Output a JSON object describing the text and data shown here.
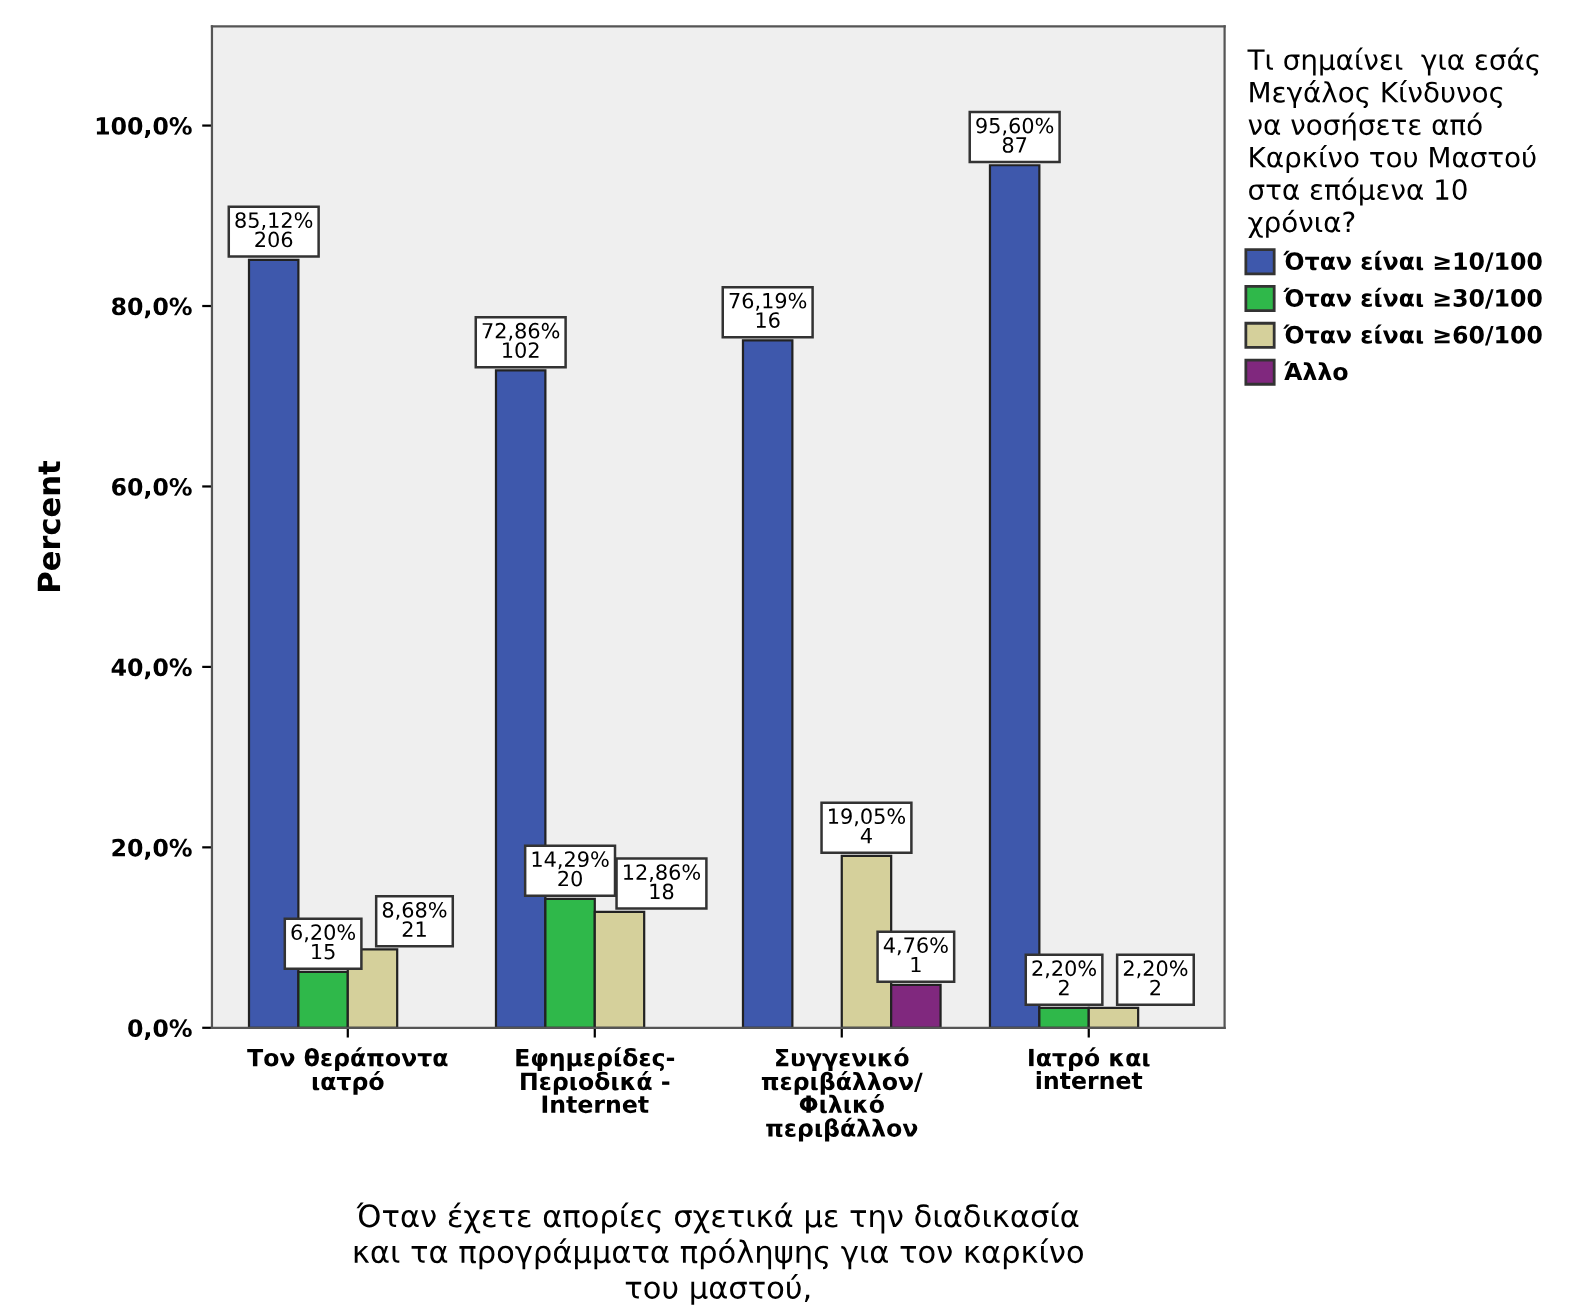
{
  "chart_data": {
    "type": "bar",
    "xlabel": "Όταν έχετε απορίες σχετικά με την διαδικασία\nκαι τα προγράμματα πρόληψης για τον καρκίνο\nτου μαστού,",
    "ylabel": "Percent",
    "legend_title": "Τι σημαίνει  για εσάς\nΜεγάλος Κίνδυνος\nνα νοσήσετε από\nΚαρκίνο του Μαστού\nστα επόμενα 10\nχρόνια?",
    "categories": [
      "Τον θεράποντα\nιατρό",
      "Εφημερίδες-\nΠεριοδικά -\nInternet",
      "Συγγενικό\nπεριβάλλον/\nΦιλικό\nπεριβάλλον",
      "Ιατρό και\ninternet"
    ],
    "series": [
      {
        "name": "Όταν είναι ≥10/100",
        "color": "#3e58ac",
        "values": [
          85.12,
          72.86,
          76.19,
          95.6
        ],
        "value_labels": [
          "85,12%\n206",
          "72,86%\n102",
          "76,19%\n16",
          "95,60%\n87"
        ]
      },
      {
        "name": "Όταν είναι ≥30/100",
        "color": "#2fb84a",
        "values": [
          6.2,
          14.29,
          null,
          2.2
        ],
        "value_labels": [
          "6,20%\n15",
          "14,29%\n20",
          null,
          "2,20%\n2"
        ]
      },
      {
        "name": "Όταν είναι ≥60/100",
        "color": "#d5d09b",
        "values": [
          8.68,
          12.86,
          19.05,
          2.2
        ],
        "value_labels": [
          "8,68%\n21",
          "12,86%\n18",
          "19,05%\n4",
          "2,20%\n2"
        ]
      },
      {
        "name": "Άλλο",
        "color": "#80287e",
        "values": [
          null,
          null,
          4.76,
          null
        ],
        "value_labels": [
          null,
          null,
          "4,76%\n1",
          null
        ]
      }
    ],
    "ylim": [
      0,
      111
    ],
    "yticks": [
      {
        "value": 0,
        "label": "0,0%"
      },
      {
        "value": 20,
        "label": "20,0%"
      },
      {
        "value": 40,
        "label": "40,0%"
      },
      {
        "value": 60,
        "label": "60,0%"
      },
      {
        "value": 80,
        "label": "80,0%"
      },
      {
        "value": 100,
        "label": "100,0%"
      }
    ],
    "grid": false,
    "legend": "right"
  }
}
